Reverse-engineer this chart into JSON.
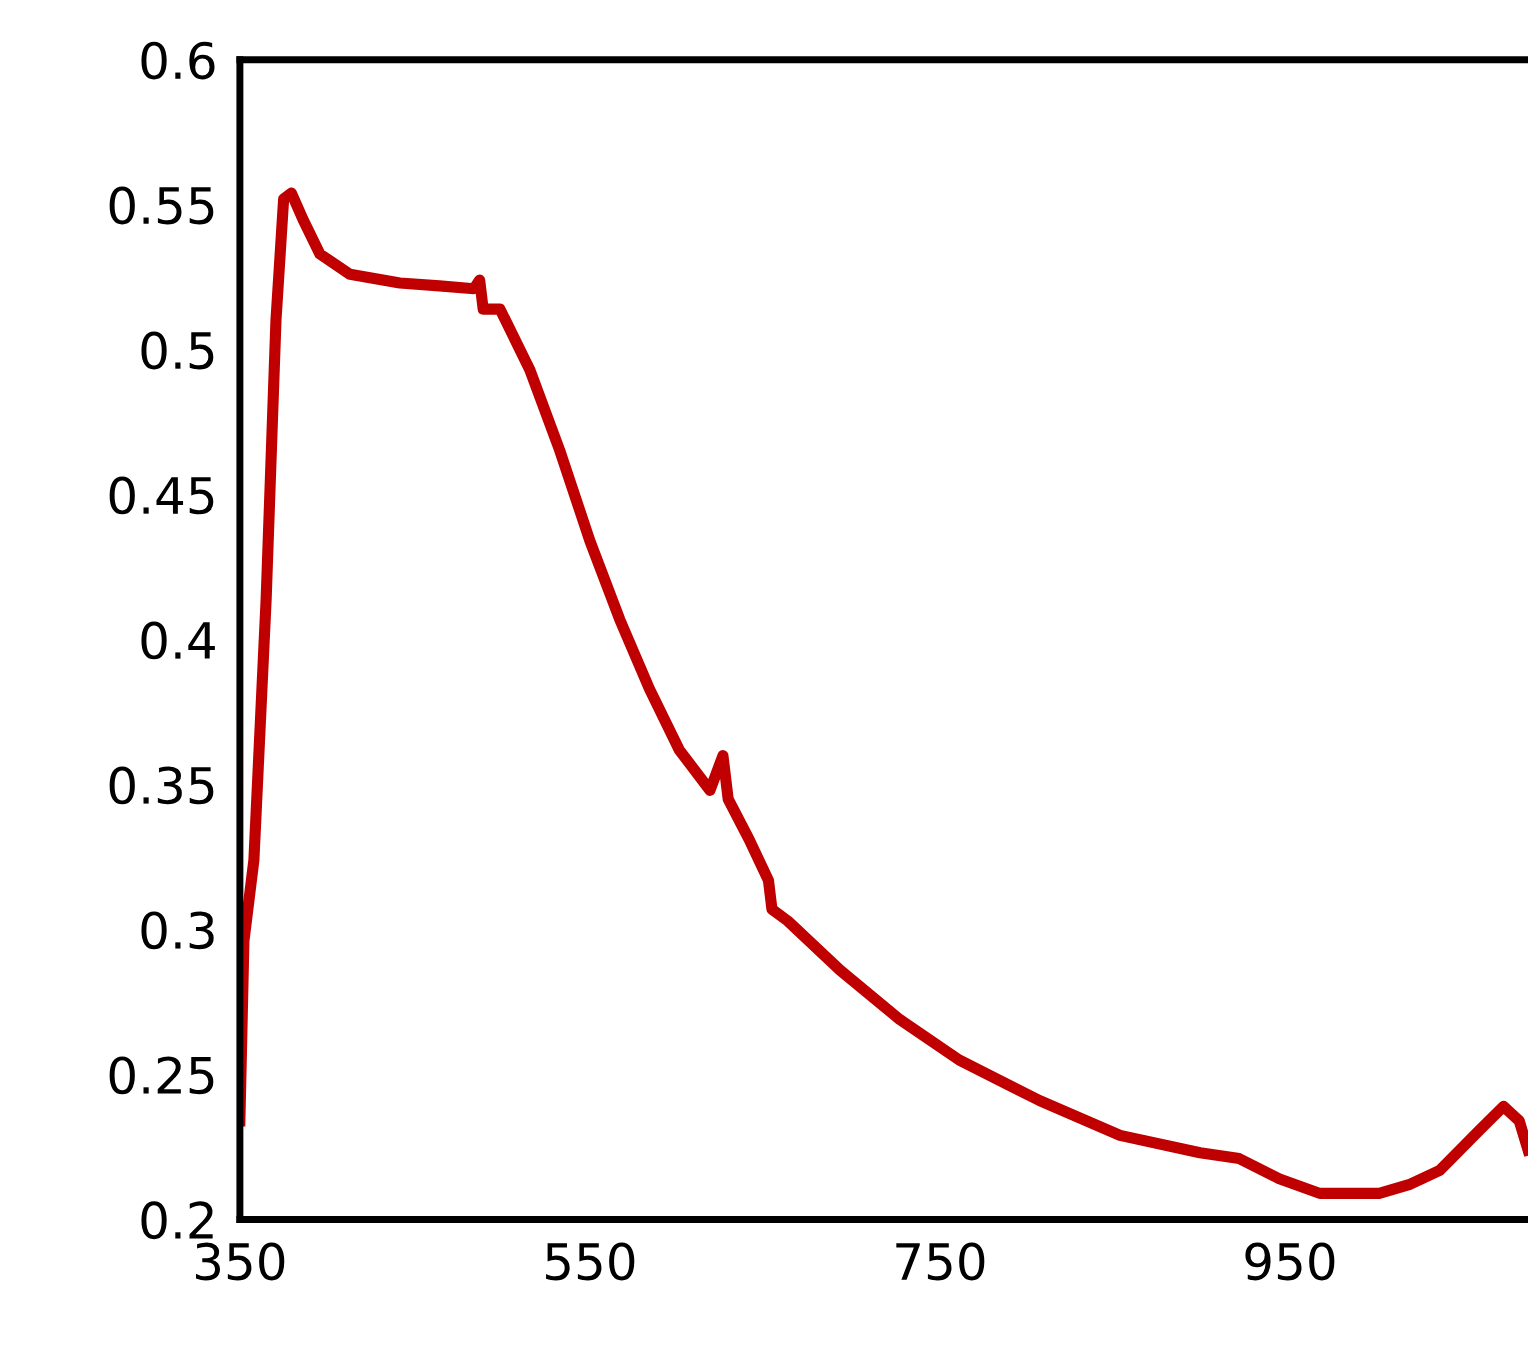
{
  "chart_data": {
    "type": "line",
    "xlim": [
      350,
      1086
    ],
    "xticks": [
      350,
      550,
      750,
      950
    ],
    "ylim": [
      0.2,
      0.6
    ],
    "yticks": [
      0.2,
      0.25,
      0.3,
      0.35,
      0.4,
      0.45,
      0.5,
      0.55,
      0.6
    ],
    "grid": false,
    "marker": "none",
    "line_style": "solid",
    "series": [
      {
        "color": "#c00000",
        "x": [
          350,
          352.3,
          358,
          365,
          370.6,
          375,
          379.4,
          386,
          395.7,
          412.9,
          441.4,
          464,
          483.7,
          487,
          489,
          498.6,
          515.7,
          532.9,
          550,
          567,
          584,
          601,
          618.6,
          626,
          629,
          641,
          652,
          654,
          663,
          692.9,
          727,
          761,
          807,
          852.9,
          898.6,
          921,
          944,
          967,
          1001,
          1018,
          1035.7,
          1058.6,
          1072,
          1081,
          1086
        ],
        "values": [
          0.234,
          0.296,
          0.324,
          0.414,
          0.51,
          0.552,
          0.554,
          0.545,
          0.533,
          0.526,
          0.523,
          0.522,
          0.521,
          0.524,
          0.514,
          0.514,
          0.493,
          0.465,
          0.434,
          0.407,
          0.383,
          0.362,
          0.348,
          0.36,
          0.345,
          0.331,
          0.317,
          0.307,
          0.303,
          0.286,
          0.269,
          0.255,
          0.241,
          0.229,
          0.223,
          0.221,
          0.214,
          0.209,
          0.209,
          0.212,
          0.217,
          0.231,
          0.239,
          0.234,
          0.224
        ]
      }
    ]
  }
}
